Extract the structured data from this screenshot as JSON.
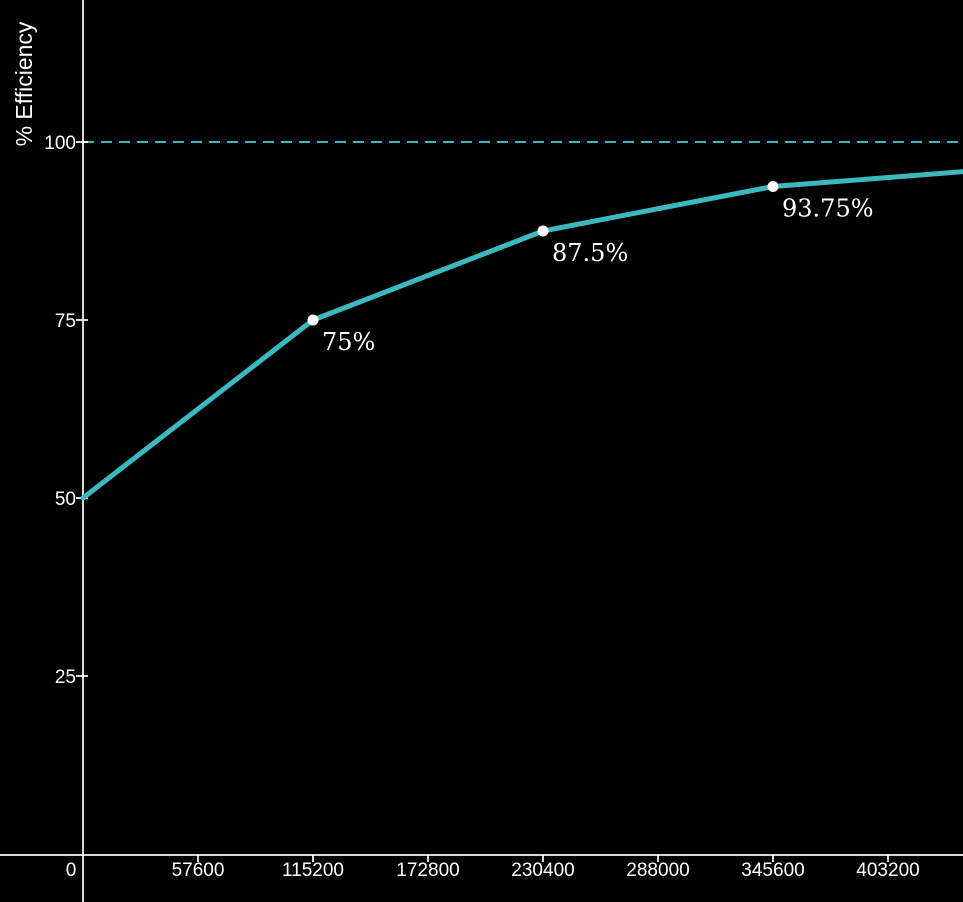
{
  "chart_data": {
    "type": "line",
    "title": "",
    "xlabel": "",
    "ylabel": "% Efficiency",
    "xlim": [
      0,
      453000
    ],
    "ylim": [
      0,
      120
    ],
    "x_ticks": [
      "0",
      "57600",
      "115200",
      "172800",
      "230400",
      "288000",
      "345600",
      "403200"
    ],
    "y_ticks": [
      "25",
      "50",
      "75",
      "100"
    ],
    "grid": false,
    "reference_line": {
      "y": 100,
      "style": "dashed"
    },
    "series": [
      {
        "x": [
          0,
          115200,
          230400,
          345600,
          453000
        ],
        "y": [
          50,
          75,
          87.5,
          93.75,
          96.1
        ]
      }
    ],
    "points": [
      {
        "x": 115200,
        "y": 75,
        "label": "75%"
      },
      {
        "x": 230400,
        "y": 87.5,
        "label": "87.5%"
      },
      {
        "x": 345600,
        "y": 93.75,
        "label": "93.75%"
      }
    ],
    "colors": {
      "background": "#000000",
      "axis": "#ffffff",
      "line": "#3cb9c0",
      "point": "#ffffff",
      "text": "#ffffff"
    }
  }
}
